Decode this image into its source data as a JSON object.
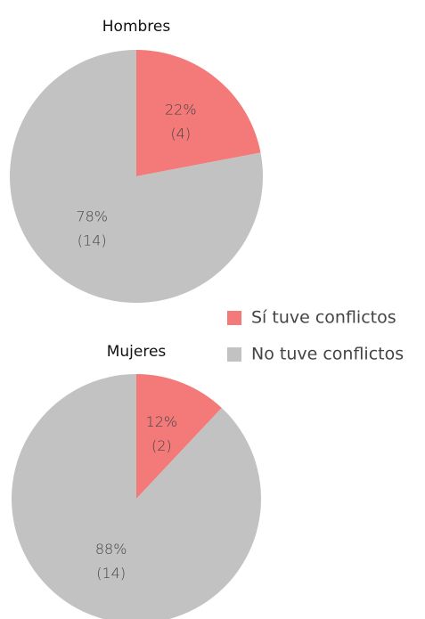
{
  "chart_data": [
    {
      "type": "pie",
      "title": "Hombres",
      "categories": [
        "Sí tuve conflictos",
        "No tuve conflictos"
      ],
      "values": [
        22,
        78
      ],
      "value_labels": [
        "22%",
        "78%"
      ],
      "count_labels": [
        "(4)",
        "(14)"
      ],
      "colors": [
        "#f47a7a",
        "#c2c2c2"
      ]
    },
    {
      "type": "pie",
      "title": "Mujeres",
      "categories": [
        "Sí tuve conflictos",
        "No tuve conflictos"
      ],
      "values": [
        12,
        88
      ],
      "value_labels": [
        "12%",
        "88%"
      ],
      "count_labels": [
        "(2)",
        "(14)"
      ],
      "colors": [
        "#f47a7a",
        "#c2c2c2"
      ]
    }
  ]
}
